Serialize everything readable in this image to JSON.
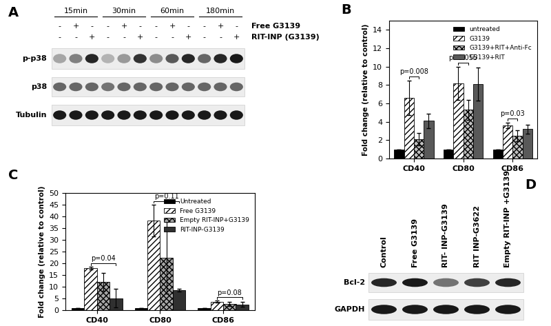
{
  "chart_data": [
    {
      "panel": "B",
      "type": "bar",
      "y_label": "Fold change (relative to control)",
      "categories": [
        "CD40",
        "CD80",
        "CD86"
      ],
      "series": [
        {
          "name": "untreated",
          "color": "#000000",
          "values": [
            1,
            1,
            1
          ],
          "errors": [
            0,
            0,
            0
          ]
        },
        {
          "name": "G3139",
          "color": "#ffffff",
          "values": [
            6.6,
            8.2,
            3.6
          ],
          "errors": [
            1.9,
            1.8,
            0.3
          ]
        },
        {
          "name": "G3139+RIT+Anti-Fc",
          "color": "#bfbfbf",
          "values": [
            2.1,
            5.3,
            2.5
          ],
          "errors": [
            0.7,
            1.1,
            0.6
          ]
        },
        {
          "name": "G3139+RIT",
          "color": "#595959",
          "values": [
            4.1,
            8.1,
            3.2
          ],
          "errors": [
            0.8,
            1.8,
            0.5
          ]
        }
      ],
      "ylim": [
        0,
        15
      ],
      "yticks": [
        0,
        2,
        4,
        6,
        8,
        10,
        12,
        14
      ],
      "legend": "upper right",
      "annotations": [
        {
          "text": "p=0.008",
          "category": "CD40",
          "between": [
            "G3139",
            "G3139+RIT+Anti-Fc"
          ]
        },
        {
          "text": "p=0.055",
          "category": "CD80",
          "between": [
            "G3139",
            "G3139+RIT+Anti-Fc"
          ]
        },
        {
          "text": "p=0.03",
          "category": "CD86",
          "between": [
            "G3139",
            "G3139+RIT+Anti-Fc"
          ]
        }
      ]
    },
    {
      "panel": "C",
      "type": "bar",
      "y_label": "Fold change (relative to control)",
      "categories": [
        "CD40",
        "CD80",
        "CD86"
      ],
      "series": [
        {
          "name": "Untreated",
          "color": "#000000",
          "values": [
            1,
            1,
            1
          ],
          "errors": [
            0,
            0,
            0
          ]
        },
        {
          "name": "Free G3139",
          "color": "#ffffff",
          "values": [
            18,
            38.2,
            3.6
          ],
          "errors": [
            0.5,
            6.8,
            0.4
          ]
        },
        {
          "name": "Empty RIT-INP+G3139",
          "color": "#a6a6a6",
          "values": [
            12.1,
            22.4,
            2.7
          ],
          "errors": [
            3.9,
            15.2,
            0.9
          ]
        },
        {
          "name": "RIT-INP-G3139",
          "color": "#303030",
          "values": [
            5.1,
            8.6,
            2.5
          ],
          "errors": [
            4.0,
            0.6,
            1.0
          ]
        }
      ],
      "ylim": [
        0,
        50
      ],
      "yticks": [
        0,
        5,
        10,
        15,
        20,
        25,
        30,
        35,
        40,
        45,
        50
      ],
      "legend": "upper right",
      "annotations": [
        {
          "text": "p=0.04",
          "category": "CD40",
          "between": [
            "Free G3139",
            "RIT-INP-G3139"
          ]
        },
        {
          "text": "p=0.11",
          "category": "CD80",
          "between": [
            "Free G3139",
            "RIT-INP-G3139"
          ]
        },
        {
          "text": "p=0.08",
          "category": "CD86",
          "between": [
            "Free G3139",
            "RIT-INP-G3139"
          ]
        }
      ]
    }
  ],
  "blots": [
    {
      "panel": "A",
      "groups": [
        "15min",
        "30min",
        "60min",
        "180min"
      ],
      "treatments": [
        {
          "label": "Free G3139",
          "marks": [
            "-",
            "+",
            "-",
            "-",
            "+",
            "-",
            "-",
            "+",
            "-",
            "-",
            "+",
            "-"
          ]
        },
        {
          "label": "RIT-INP (G3139)",
          "marks": [
            "-",
            "-",
            "+",
            "-",
            "-",
            "+",
            "-",
            "-",
            "+",
            "-",
            "-",
            "+"
          ]
        }
      ],
      "rows": [
        {
          "label": "p-p38",
          "bands": [
            0.35,
            0.5,
            0.85,
            0.3,
            0.4,
            0.8,
            0.45,
            0.65,
            0.85,
            0.6,
            0.85,
            0.9
          ]
        },
        {
          "label": "p38",
          "bands": [
            0.6,
            0.6,
            0.6,
            0.55,
            0.6,
            0.6,
            0.6,
            0.6,
            0.6,
            0.6,
            0.6,
            0.6
          ]
        },
        {
          "label": "Tubulin",
          "bands": [
            0.9,
            0.9,
            0.9,
            0.9,
            0.9,
            0.9,
            0.9,
            0.9,
            0.9,
            0.9,
            0.9,
            0.9
          ]
        }
      ]
    },
    {
      "panel": "D",
      "lanes": [
        "Control",
        "Free G3139",
        "RIT- INP-G3139",
        "RIT INP-G3622",
        "Empty RIT-INP +G3139"
      ],
      "rows": [
        {
          "label": "Bcl-2",
          "bands": [
            0.85,
            0.9,
            0.55,
            0.75,
            0.85
          ]
        },
        {
          "label": "GAPDH",
          "bands": [
            0.9,
            0.9,
            0.9,
            0.9,
            0.9
          ]
        }
      ]
    }
  ]
}
